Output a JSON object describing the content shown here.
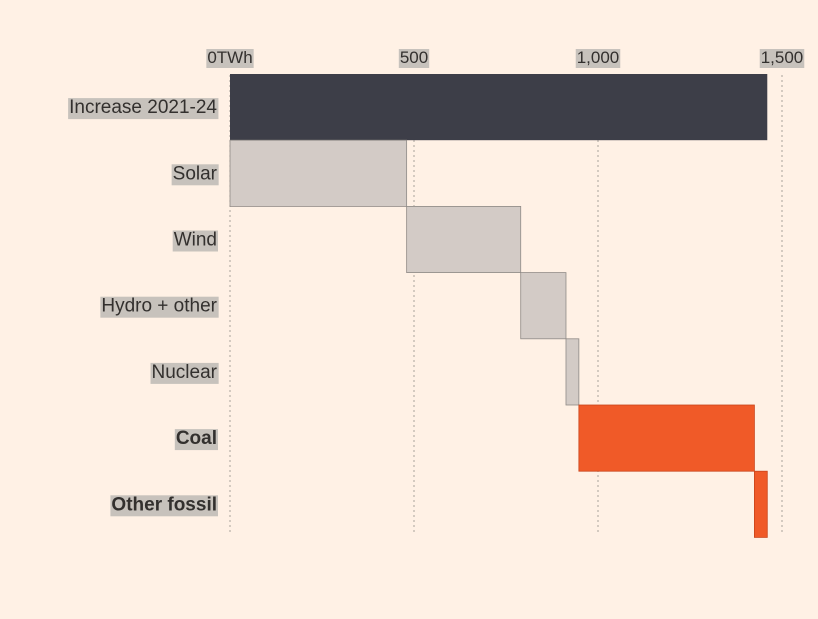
{
  "chart_data": {
    "type": "bar",
    "subtype": "waterfall",
    "orientation": "horizontal",
    "x_unit": "TWh",
    "x_ticks": [
      "0TWh",
      "500",
      "1,000",
      "1,500"
    ],
    "x_tick_values": [
      0,
      500,
      1000,
      1500
    ],
    "xlim": [
      0,
      1500
    ],
    "grid": "vertical dotted",
    "categories": [
      "Increase 2021-24",
      "Solar",
      "Wind",
      "Hydro + other",
      "Nuclear",
      "Coal",
      "Other fossil"
    ],
    "bold_categories": [
      "Coal",
      "Other fossil"
    ],
    "bars": [
      {
        "category": "Increase 2021-24",
        "start": 0,
        "end": 1460,
        "value": 1460,
        "color": "#3d3e48"
      },
      {
        "category": "Solar",
        "start": 0,
        "end": 480,
        "value": 480,
        "color": "#d3cbc6"
      },
      {
        "category": "Wind",
        "start": 480,
        "end": 790,
        "value": 310,
        "color": "#d3cbc6"
      },
      {
        "category": "Hydro + other",
        "start": 790,
        "end": 913,
        "value": 123,
        "color": "#d3cbc6"
      },
      {
        "category": "Nuclear",
        "start": 913,
        "end": 948,
        "value": 35,
        "color": "#d3cbc6"
      },
      {
        "category": "Coal",
        "start": 948,
        "end": 1425,
        "value": 477,
        "color": "#f05a28"
      },
      {
        "category": "Other fossil",
        "start": 1425,
        "end": 1460,
        "value": 35,
        "color": "#f05a28"
      }
    ]
  }
}
